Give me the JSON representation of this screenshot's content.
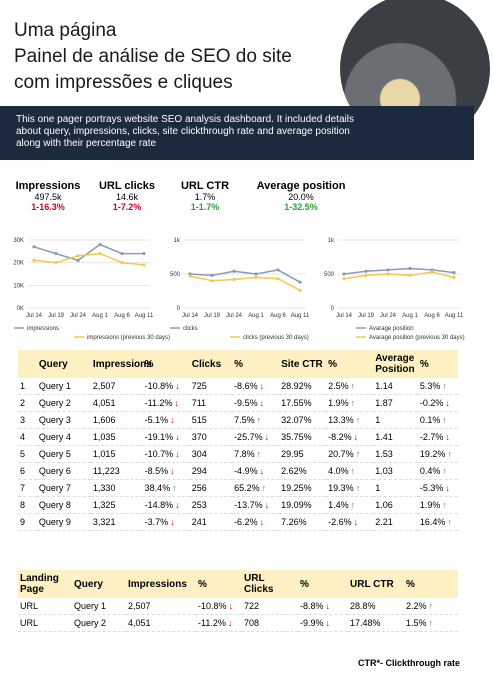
{
  "header": {
    "title_lines": [
      "Uma página",
      "Painel de análise de SEO do site",
      "com impressões e cliques"
    ]
  },
  "description": "This one pager portrays website SEO analysis dashboard. It included details about query, impressions, clicks, site clickthrough rate and average position along with their percentage rate",
  "kpis": [
    {
      "label": "Impressions",
      "value": "497.5k",
      "change": "1-16.3%",
      "color": "#d0021b"
    },
    {
      "label": "URL clicks",
      "value": "14.6k",
      "change": "1-7.2%",
      "color": "#d0021b"
    },
    {
      "label": "URL CTR",
      "value": "1.7%",
      "change": "1-1.7%",
      "color": "#2e9e3a"
    },
    {
      "label": "Average position",
      "value": "20.0%",
      "change": "1-32.5%",
      "color": "#2e9e3a"
    }
  ],
  "chart_data": [
    {
      "type": "line",
      "categories": [
        "Jul 14",
        "Jul 19",
        "Jul 24",
        "Aug 1",
        "Aug 6",
        "Aug 11"
      ],
      "series": [
        {
          "name": "impressions",
          "color": "#8a9bb8",
          "values": [
            27000,
            24000,
            21000,
            28000,
            24000,
            24000
          ]
        },
        {
          "name": "impressions (previous 30 days)",
          "color": "#f5c84c",
          "values": [
            21000,
            20000,
            23000,
            24000,
            20000,
            19000
          ]
        }
      ],
      "ylim": [
        0,
        30000
      ],
      "yticks": [
        {
          "value": 0,
          "label": "0K"
        },
        {
          "value": 10000,
          "label": "10K"
        },
        {
          "value": 20000,
          "label": "20K"
        },
        {
          "value": 30000,
          "label": "30K"
        }
      ]
    },
    {
      "type": "line",
      "categories": [
        "Jul 14",
        "Jul 19",
        "Jul 24",
        "Aug 1",
        "Aug 6",
        "Aug 11"
      ],
      "series": [
        {
          "name": "clicks",
          "color": "#8a9bb8",
          "values": [
            500,
            480,
            540,
            500,
            560,
            380
          ]
        },
        {
          "name": "clicks (previous 30 days)",
          "color": "#f5c84c",
          "values": [
            470,
            400,
            420,
            450,
            430,
            260
          ]
        }
      ],
      "ylim": [
        0,
        1000
      ],
      "yticks": [
        0,
        500,
        {
          "value": 1000,
          "label": "1k"
        }
      ]
    },
    {
      "type": "line",
      "categories": [
        "Jul 14",
        "Jul 19",
        "Jul 24",
        "Aug 1",
        "Aug 6",
        "Aug 11"
      ],
      "series": [
        {
          "name": "Avarage position",
          "color": "#8a9bb8",
          "values": [
            500,
            540,
            560,
            580,
            560,
            520
          ]
        },
        {
          "name": "Avarage position (previous 30 days)",
          "color": "#f5c84c",
          "values": [
            430,
            480,
            500,
            480,
            530,
            450
          ]
        }
      ],
      "ylim": [
        0,
        1000
      ],
      "yticks": [
        0,
        500,
        {
          "value": 1000,
          "label": "1k"
        }
      ]
    }
  ],
  "query_table": {
    "headers": [
      "Query",
      "Impressions",
      "%",
      "Clicks",
      "%",
      "Site CTR",
      "%",
      "Average Position",
      "%"
    ],
    "rows": [
      [
        "1",
        "Query 1",
        "2,507",
        "-10.8%",
        "725",
        "-8.6%",
        "28.92%",
        "2.5%",
        "1.14",
        "5.3%"
      ],
      [
        "2",
        "Query 2",
        "4,051",
        "-11.2%",
        "711",
        "-9.5%",
        "17.55%",
        "1.9%",
        "1.87",
        "-0.2%"
      ],
      [
        "3",
        "Query 3",
        "1,606",
        "-5.1%",
        "515",
        "7.5%",
        "32.07%",
        "13.3%",
        "1",
        "0.1%"
      ],
      [
        "4",
        "Query 4",
        "1,035",
        "-19.1%",
        "370",
        "-25.7%",
        "35.75%",
        "-8.2%",
        "1.41",
        "-2.7%"
      ],
      [
        "5",
        "Query 5",
        "1,015",
        "-10.7%",
        "304",
        "7.8%",
        "29.95",
        "20.7%",
        "1.53",
        "19.2%"
      ],
      [
        "6",
        "Query 6",
        "11,223",
        "-8.5%",
        "294",
        "-4.9%",
        "2.62%",
        "4.0%",
        "1.03",
        "0.4%"
      ],
      [
        "7",
        "Query 7",
        "1,330",
        "38.4%",
        "256",
        "65.2%",
        "19.25%",
        "19.3%",
        "1",
        "-5.3%"
      ],
      [
        "8",
        "Query 8",
        "1,325",
        "-14.8%",
        "253",
        "-13.7%",
        "19.09%",
        "1.4%",
        "1.06",
        "1.9%"
      ],
      [
        "9",
        "Query 9",
        "3,321",
        "-3.7%",
        "241",
        "-6.2%",
        "7.26%",
        "-2.6%",
        "2.21",
        "16.4%"
      ]
    ]
  },
  "landing_table": {
    "headers": [
      "Landing Page",
      "Query",
      "Impressions",
      "%",
      "URL Clicks",
      "%",
      "URL CTR",
      "%"
    ],
    "rows": [
      [
        "URL",
        "Query 1",
        "2,507",
        "-10.8%",
        "722",
        "-8.8%",
        "28.8%",
        "2.2%"
      ],
      [
        "URL",
        "Query 2",
        "4,051",
        "-11.2%",
        "708",
        "-9.9%",
        "17.48%",
        "1.5%"
      ]
    ]
  },
  "footnote": "CTR*- Clickthrough rate"
}
